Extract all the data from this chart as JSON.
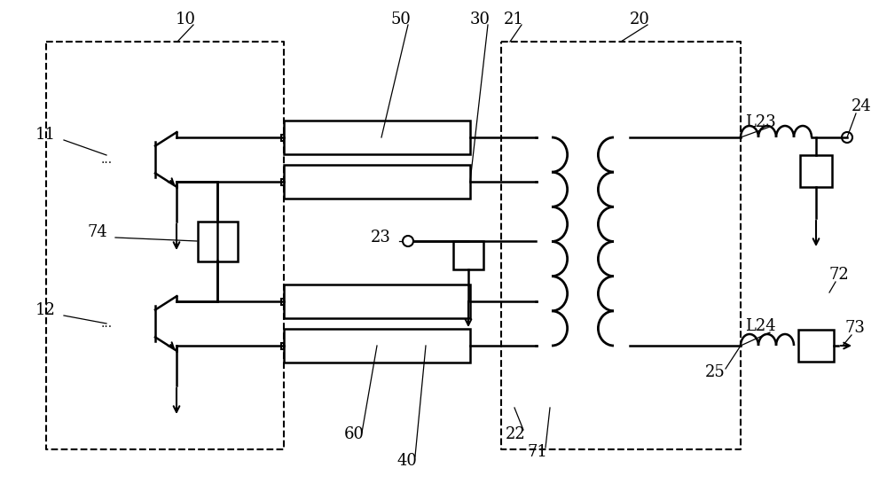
{
  "bg_color": "#ffffff",
  "lw": 1.8,
  "fig_w": 10.0,
  "fig_h": 5.63,
  "dpi": 100
}
